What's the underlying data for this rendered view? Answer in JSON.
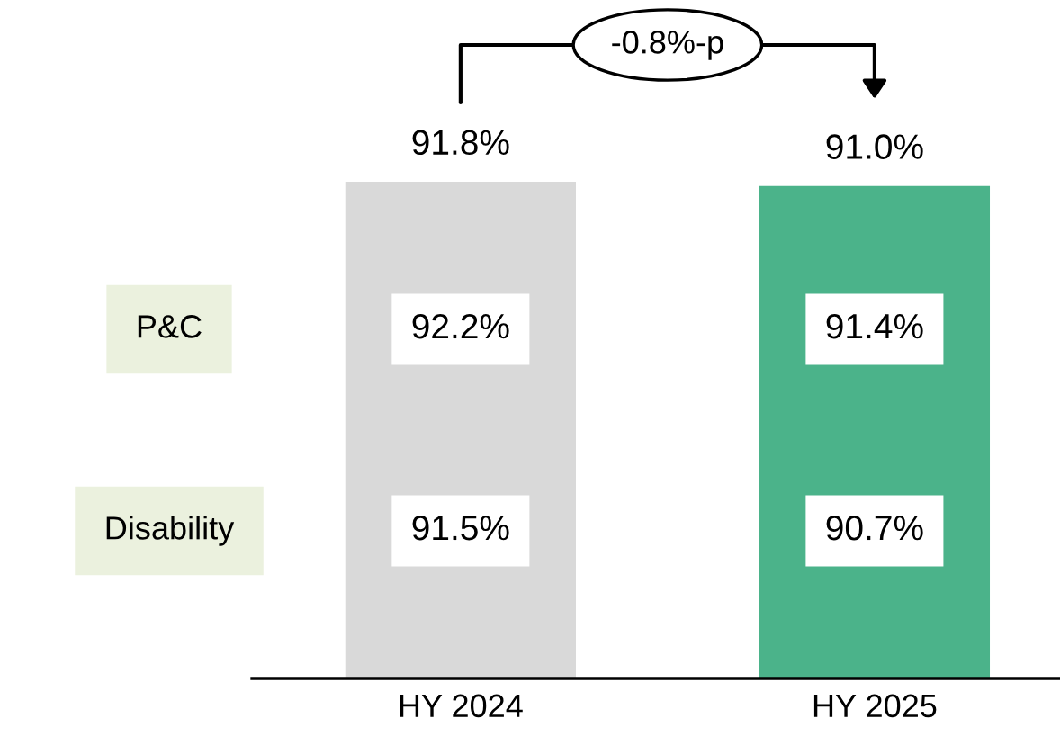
{
  "chart_data": {
    "type": "bar",
    "categories": [
      "HY 2024",
      "HY 2025"
    ],
    "values": [
      91.8,
      91.0
    ],
    "value_labels": [
      "91.8%",
      "91.0%"
    ],
    "colors": [
      "#d9d9d9",
      "#4bb38a"
    ],
    "grid": false,
    "legend": false,
    "annotations": [
      "P&C",
      "Disability",
      "92.2%",
      "91.4%",
      "91.5%",
      "90.7%",
      "-0.8%-p"
    ]
  }
}
